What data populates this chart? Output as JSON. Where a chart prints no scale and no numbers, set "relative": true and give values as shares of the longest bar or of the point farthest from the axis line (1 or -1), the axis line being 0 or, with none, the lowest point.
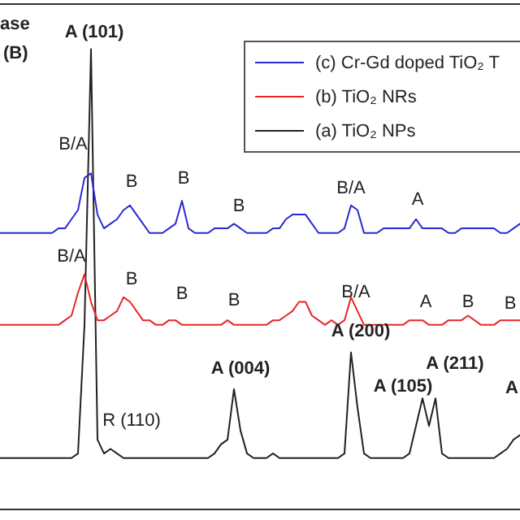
{
  "chart_data": {
    "type": "line",
    "relative": true,
    "legend": "top right",
    "marker": "none",
    "line_style": "solid",
    "categories": [
      null,
      null,
      null,
      null,
      null,
      null,
      null,
      null,
      null,
      null,
      null,
      null,
      null,
      null,
      null,
      null,
      null,
      null,
      null,
      null,
      null,
      null,
      null,
      null,
      null,
      null,
      null,
      null,
      null,
      null,
      null,
      null,
      null,
      null,
      null,
      null,
      null,
      null,
      null,
      null,
      null,
      null,
      null,
      null,
      null,
      null,
      null,
      null,
      null,
      null,
      null,
      null,
      null,
      null,
      null,
      null,
      null,
      null,
      null,
      null,
      null,
      null,
      null,
      null,
      null,
      null,
      null,
      null,
      null,
      null,
      null,
      null,
      null,
      null,
      null,
      null,
      null,
      null,
      null,
      null,
      null
    ],
    "series": [
      {
        "name": "(c) Cr-Gd doped TiO₂ T",
        "color": "#2a2ad0",
        "values": [
          0.6,
          0.6,
          0.6,
          0.6,
          0.6,
          0.6,
          0.6,
          0.6,
          0.6,
          0.61,
          0.61,
          0.63,
          0.65,
          0.72,
          0.73,
          0.64,
          0.61,
          0.62,
          0.63,
          0.65,
          0.66,
          0.64,
          0.62,
          0.6,
          0.6,
          0.6,
          0.61,
          0.62,
          0.67,
          0.61,
          0.6,
          0.6,
          0.6,
          0.61,
          0.61,
          0.61,
          0.62,
          0.61,
          0.6,
          0.6,
          0.6,
          0.6,
          0.61,
          0.61,
          0.63,
          0.64,
          0.64,
          0.64,
          0.62,
          0.6,
          0.6,
          0.6,
          0.6,
          0.61,
          0.66,
          0.65,
          0.6,
          0.6,
          0.6,
          0.61,
          0.61,
          0.61,
          0.61,
          0.61,
          0.63,
          0.61,
          0.61,
          0.61,
          0.61,
          0.6,
          0.6,
          0.61,
          0.61,
          0.61,
          0.61,
          0.61,
          0.61,
          0.6,
          0.6,
          0.61,
          0.62
        ]
      },
      {
        "name": "(b) TiO₂ NRs",
        "color": "#e8262a",
        "values": [
          0.4,
          0.4,
          0.4,
          0.4,
          0.4,
          0.4,
          0.4,
          0.4,
          0.4,
          0.4,
          0.41,
          0.42,
          0.47,
          0.51,
          0.45,
          0.41,
          0.41,
          0.42,
          0.43,
          0.46,
          0.45,
          0.43,
          0.41,
          0.41,
          0.4,
          0.4,
          0.41,
          0.41,
          0.4,
          0.4,
          0.4,
          0.4,
          0.4,
          0.4,
          0.4,
          0.41,
          0.4,
          0.4,
          0.4,
          0.4,
          0.4,
          0.4,
          0.41,
          0.41,
          0.42,
          0.43,
          0.45,
          0.45,
          0.42,
          0.41,
          0.4,
          0.41,
          0.4,
          0.41,
          0.46,
          0.43,
          0.4,
          0.4,
          0.4,
          0.4,
          0.4,
          0.4,
          0.4,
          0.41,
          0.41,
          0.41,
          0.4,
          0.4,
          0.4,
          0.41,
          0.41,
          0.41,
          0.42,
          0.41,
          0.4,
          0.4,
          0.4,
          0.41,
          0.41,
          0.41,
          0.41
        ]
      },
      {
        "name": "(a) TiO₂ NPs",
        "color": "#222222",
        "values": [
          0.11,
          0.11,
          0.11,
          0.11,
          0.11,
          0.11,
          0.11,
          0.11,
          0.11,
          0.11,
          0.11,
          0.11,
          0.12,
          0.4,
          1.0,
          0.15,
          0.12,
          0.13,
          0.12,
          0.11,
          0.11,
          0.11,
          0.11,
          0.11,
          0.11,
          0.11,
          0.11,
          0.11,
          0.11,
          0.11,
          0.11,
          0.11,
          0.11,
          0.12,
          0.14,
          0.15,
          0.26,
          0.17,
          0.12,
          0.11,
          0.11,
          0.11,
          0.12,
          0.11,
          0.11,
          0.11,
          0.11,
          0.11,
          0.11,
          0.11,
          0.11,
          0.11,
          0.11,
          0.12,
          0.34,
          0.22,
          0.12,
          0.11,
          0.11,
          0.11,
          0.11,
          0.11,
          0.11,
          0.12,
          0.18,
          0.24,
          0.18,
          0.24,
          0.12,
          0.11,
          0.11,
          0.11,
          0.11,
          0.11,
          0.11,
          0.11,
          0.11,
          0.12,
          0.13,
          0.15,
          0.16
        ]
      }
    ],
    "annotations": [
      "ase",
      "(B)",
      "A (101)",
      "B/A",
      "B",
      "B",
      "B",
      "B/A",
      "A",
      "B/A",
      "B",
      "B",
      "B",
      "B/A",
      "A",
      "B",
      "B",
      "A (200)",
      "A (004)",
      "A (105)",
      "A (211)",
      "R (110)",
      "A"
    ]
  }
}
